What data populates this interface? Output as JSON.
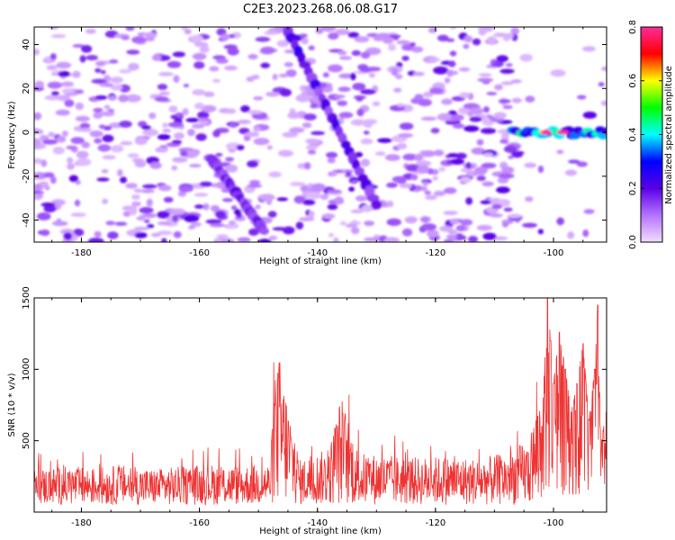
{
  "title": "C2E3.2023.268.06.08.G17",
  "chart_data": [
    {
      "type": "heatmap",
      "xlabel": "Height of straight line (km)",
      "ylabel": "Frequency (Hz)",
      "xlim": [
        -188,
        -91
      ],
      "ylim": [
        -50,
        48
      ],
      "xticks": [
        -180,
        -160,
        -140,
        -120,
        -100
      ],
      "yticks": [
        -40,
        -20,
        0,
        20,
        40
      ],
      "colorbar": {
        "label": "Normalized spectral amplitude",
        "range": [
          0,
          0.8
        ],
        "ticks": [
          "0.0",
          "0.2",
          "0.4",
          "0.6",
          "0.8"
        ],
        "colormap": [
          "#f2ddff",
          "#b473ff",
          "#5a00e6",
          "#0000ff",
          "#00ffff",
          "#00ff00",
          "#ffff00",
          "#ff0000",
          "#ff2b9c"
        ]
      },
      "features": [
        {
          "name": "diagonal streak",
          "from": [
            -145,
            46
          ],
          "to": [
            -130,
            -33
          ],
          "peak": 0.25
        },
        {
          "name": "diagonal streak",
          "from": [
            -158,
            -12
          ],
          "to": [
            -149,
            -45
          ],
          "peak": 0.2
        },
        {
          "name": "narrowband signal",
          "x_range": [
            -107,
            -91
          ],
          "frequency": 0,
          "peak": 0.8
        }
      ]
    },
    {
      "type": "line",
      "xlabel": "Height of straight line (km)",
      "ylabel": "SNR (10 * v/v)",
      "xlim": [
        -188,
        -91
      ],
      "ylim": [
        0,
        1500
      ],
      "xticks": [
        -180,
        -160,
        -140,
        -120,
        -100
      ],
      "yticks": [
        500,
        1000,
        1500
      ],
      "series": [
        {
          "color": "#ee3333",
          "x": [
            -188,
            -183,
            -178,
            -173,
            -168,
            -163,
            -158,
            -153,
            -148,
            -147,
            -143,
            -138,
            -136,
            -133,
            -128,
            -123,
            -118,
            -113,
            -108,
            -104,
            -102,
            -101,
            -100.5,
            -100,
            -99,
            -98,
            -97,
            -96,
            -95,
            -94,
            -93,
            -92.5,
            -92,
            -91
          ],
          "y": [
            190,
            200,
            195,
            205,
            190,
            200,
            210,
            205,
            215,
            760,
            230,
            280,
            520,
            260,
            250,
            240,
            245,
            235,
            260,
            320,
            600,
            1500,
            1200,
            900,
            1260,
            1000,
            700,
            900,
            1180,
            650,
            1000,
            1450,
            500,
            700
          ]
        }
      ]
    }
  ]
}
